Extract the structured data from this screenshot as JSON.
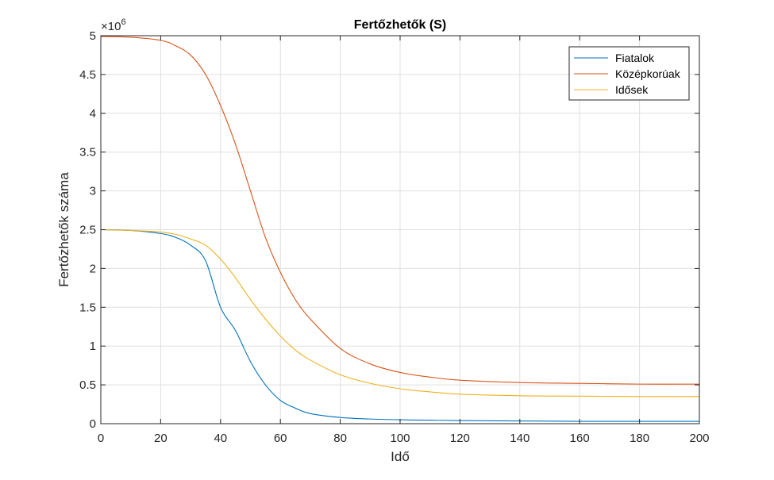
{
  "chart_data": {
    "type": "line",
    "title": "Fertőzhetők (S)",
    "xlabel": "Idő",
    "ylabel": "Fertőzhetők száma",
    "y_exponent_label": "×10",
    "y_exponent_power": "6",
    "xlim": [
      0,
      200
    ],
    "ylim": [
      0,
      5
    ],
    "y_scale_factor": 1000000,
    "xticks": [
      0,
      20,
      40,
      60,
      80,
      100,
      120,
      140,
      160,
      180,
      200
    ],
    "xtick_labels": [
      "0",
      "20",
      "40",
      "60",
      "80",
      "100",
      "120",
      "140",
      "160",
      "180",
      "200"
    ],
    "yticks": [
      0,
      0.5,
      1,
      1.5,
      2,
      2.5,
      3,
      3.5,
      4,
      4.5,
      5
    ],
    "ytick_labels": [
      "0",
      "0.5",
      "1",
      "1.5",
      "2",
      "2.5",
      "3",
      "3.5",
      "4",
      "4.5",
      "5"
    ],
    "grid": true,
    "legend_position": "top-right",
    "x": [
      0,
      10,
      20,
      25,
      30,
      35,
      40,
      45,
      50,
      55,
      60,
      65,
      70,
      80,
      90,
      100,
      110,
      120,
      140,
      160,
      180,
      200
    ],
    "series": [
      {
        "name": "Fiatalok",
        "color": "#0072BD",
        "values": [
          2.5,
          2.49,
          2.45,
          2.4,
          2.3,
          2.1,
          1.5,
          1.2,
          0.8,
          0.5,
          0.3,
          0.2,
          0.13,
          0.08,
          0.06,
          0.05,
          0.045,
          0.04,
          0.035,
          0.03,
          0.03,
          0.03
        ]
      },
      {
        "name": "Középkorúak",
        "color": "#D95319",
        "values": [
          4.99,
          4.98,
          4.94,
          4.87,
          4.75,
          4.5,
          4.1,
          3.6,
          3.0,
          2.4,
          1.95,
          1.6,
          1.35,
          0.97,
          0.77,
          0.66,
          0.6,
          0.56,
          0.53,
          0.52,
          0.51,
          0.51
        ]
      },
      {
        "name": "Idősek",
        "color": "#EDB120",
        "values": [
          2.5,
          2.49,
          2.47,
          2.44,
          2.38,
          2.3,
          2.12,
          1.88,
          1.6,
          1.35,
          1.13,
          0.95,
          0.82,
          0.63,
          0.52,
          0.45,
          0.41,
          0.38,
          0.36,
          0.355,
          0.35,
          0.35
        ]
      }
    ]
  }
}
